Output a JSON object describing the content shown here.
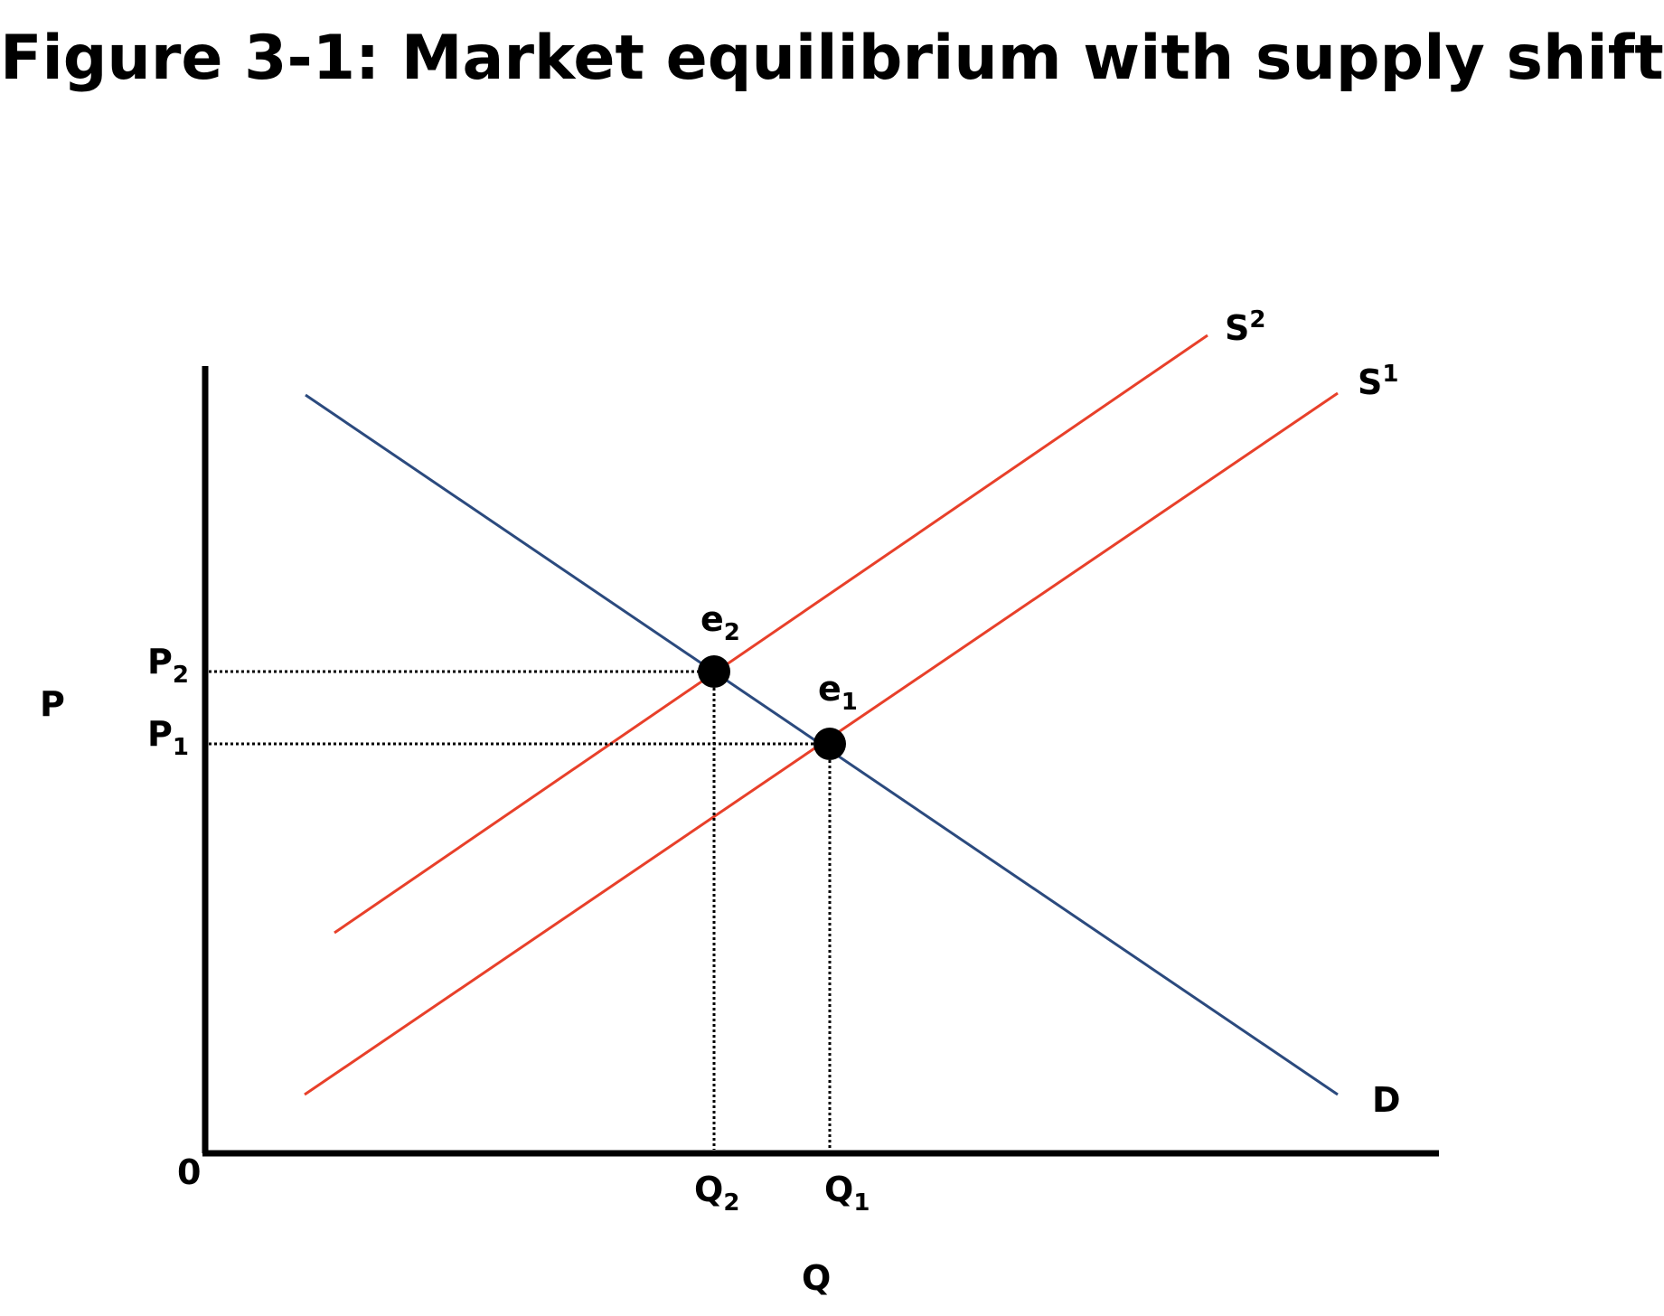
{
  "title": "Figure 3-1: Market equilibrium with supply shift",
  "colors": {
    "supply": "#e8402a",
    "demand": "#2b4a7e",
    "axis": "#000000",
    "guide": "#000000",
    "point": "#000000"
  },
  "axes": {
    "y_label": "P",
    "x_label": "Q",
    "origin": "0"
  },
  "curves": {
    "demand": {
      "label": "D"
    },
    "supply_1": {
      "label": "S",
      "superscript": "1"
    },
    "supply_2": {
      "label": "S",
      "superscript": "2"
    }
  },
  "equilibria": [
    {
      "point": "e",
      "point_sub": "1",
      "price": "P",
      "price_sub": "1",
      "quantity": "Q",
      "quantity_sub": "1"
    },
    {
      "point": "e",
      "point_sub": "2",
      "price": "P",
      "price_sub": "2",
      "quantity": "Q",
      "quantity_sub": "2"
    }
  ]
}
